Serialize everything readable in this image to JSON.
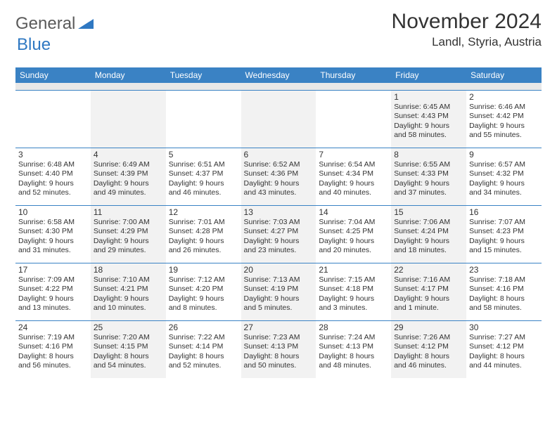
{
  "brand": {
    "part1": "General",
    "part2": "Blue",
    "color1": "#5a5a5a",
    "color2": "#2f78c2"
  },
  "title": "November 2024",
  "location": "Landl, Styria, Austria",
  "colors": {
    "header_bg": "#3a82c4",
    "header_text": "#ffffff",
    "row_border": "#3a82c4",
    "alt_bg": "#f2f2f2",
    "spacer_bg": "#e8e8e8",
    "text": "#333333"
  },
  "fonts": {
    "title_size": 30,
    "location_size": 17,
    "dayhead_size": 12,
    "daynum_size": 12,
    "info_size": 10.5
  },
  "dayHeaders": [
    "Sunday",
    "Monday",
    "Tuesday",
    "Wednesday",
    "Thursday",
    "Friday",
    "Saturday"
  ],
  "weeks": [
    [
      null,
      null,
      null,
      null,
      null,
      {
        "n": "1",
        "sr": "Sunrise: 6:45 AM",
        "ss": "Sunset: 4:43 PM",
        "d1": "Daylight: 9 hours",
        "d2": "and 58 minutes."
      },
      {
        "n": "2",
        "sr": "Sunrise: 6:46 AM",
        "ss": "Sunset: 4:42 PM",
        "d1": "Daylight: 9 hours",
        "d2": "and 55 minutes."
      }
    ],
    [
      {
        "n": "3",
        "sr": "Sunrise: 6:48 AM",
        "ss": "Sunset: 4:40 PM",
        "d1": "Daylight: 9 hours",
        "d2": "and 52 minutes."
      },
      {
        "n": "4",
        "sr": "Sunrise: 6:49 AM",
        "ss": "Sunset: 4:39 PM",
        "d1": "Daylight: 9 hours",
        "d2": "and 49 minutes."
      },
      {
        "n": "5",
        "sr": "Sunrise: 6:51 AM",
        "ss": "Sunset: 4:37 PM",
        "d1": "Daylight: 9 hours",
        "d2": "and 46 minutes."
      },
      {
        "n": "6",
        "sr": "Sunrise: 6:52 AM",
        "ss": "Sunset: 4:36 PM",
        "d1": "Daylight: 9 hours",
        "d2": "and 43 minutes."
      },
      {
        "n": "7",
        "sr": "Sunrise: 6:54 AM",
        "ss": "Sunset: 4:34 PM",
        "d1": "Daylight: 9 hours",
        "d2": "and 40 minutes."
      },
      {
        "n": "8",
        "sr": "Sunrise: 6:55 AM",
        "ss": "Sunset: 4:33 PM",
        "d1": "Daylight: 9 hours",
        "d2": "and 37 minutes."
      },
      {
        "n": "9",
        "sr": "Sunrise: 6:57 AM",
        "ss": "Sunset: 4:32 PM",
        "d1": "Daylight: 9 hours",
        "d2": "and 34 minutes."
      }
    ],
    [
      {
        "n": "10",
        "sr": "Sunrise: 6:58 AM",
        "ss": "Sunset: 4:30 PM",
        "d1": "Daylight: 9 hours",
        "d2": "and 31 minutes."
      },
      {
        "n": "11",
        "sr": "Sunrise: 7:00 AM",
        "ss": "Sunset: 4:29 PM",
        "d1": "Daylight: 9 hours",
        "d2": "and 29 minutes."
      },
      {
        "n": "12",
        "sr": "Sunrise: 7:01 AM",
        "ss": "Sunset: 4:28 PM",
        "d1": "Daylight: 9 hours",
        "d2": "and 26 minutes."
      },
      {
        "n": "13",
        "sr": "Sunrise: 7:03 AM",
        "ss": "Sunset: 4:27 PM",
        "d1": "Daylight: 9 hours",
        "d2": "and 23 minutes."
      },
      {
        "n": "14",
        "sr": "Sunrise: 7:04 AM",
        "ss": "Sunset: 4:25 PM",
        "d1": "Daylight: 9 hours",
        "d2": "and 20 minutes."
      },
      {
        "n": "15",
        "sr": "Sunrise: 7:06 AM",
        "ss": "Sunset: 4:24 PM",
        "d1": "Daylight: 9 hours",
        "d2": "and 18 minutes."
      },
      {
        "n": "16",
        "sr": "Sunrise: 7:07 AM",
        "ss": "Sunset: 4:23 PM",
        "d1": "Daylight: 9 hours",
        "d2": "and 15 minutes."
      }
    ],
    [
      {
        "n": "17",
        "sr": "Sunrise: 7:09 AM",
        "ss": "Sunset: 4:22 PM",
        "d1": "Daylight: 9 hours",
        "d2": "and 13 minutes."
      },
      {
        "n": "18",
        "sr": "Sunrise: 7:10 AM",
        "ss": "Sunset: 4:21 PM",
        "d1": "Daylight: 9 hours",
        "d2": "and 10 minutes."
      },
      {
        "n": "19",
        "sr": "Sunrise: 7:12 AM",
        "ss": "Sunset: 4:20 PM",
        "d1": "Daylight: 9 hours",
        "d2": "and 8 minutes."
      },
      {
        "n": "20",
        "sr": "Sunrise: 7:13 AM",
        "ss": "Sunset: 4:19 PM",
        "d1": "Daylight: 9 hours",
        "d2": "and 5 minutes."
      },
      {
        "n": "21",
        "sr": "Sunrise: 7:15 AM",
        "ss": "Sunset: 4:18 PM",
        "d1": "Daylight: 9 hours",
        "d2": "and 3 minutes."
      },
      {
        "n": "22",
        "sr": "Sunrise: 7:16 AM",
        "ss": "Sunset: 4:17 PM",
        "d1": "Daylight: 9 hours",
        "d2": "and 1 minute."
      },
      {
        "n": "23",
        "sr": "Sunrise: 7:18 AM",
        "ss": "Sunset: 4:16 PM",
        "d1": "Daylight: 8 hours",
        "d2": "and 58 minutes."
      }
    ],
    [
      {
        "n": "24",
        "sr": "Sunrise: 7:19 AM",
        "ss": "Sunset: 4:16 PM",
        "d1": "Daylight: 8 hours",
        "d2": "and 56 minutes."
      },
      {
        "n": "25",
        "sr": "Sunrise: 7:20 AM",
        "ss": "Sunset: 4:15 PM",
        "d1": "Daylight: 8 hours",
        "d2": "and 54 minutes."
      },
      {
        "n": "26",
        "sr": "Sunrise: 7:22 AM",
        "ss": "Sunset: 4:14 PM",
        "d1": "Daylight: 8 hours",
        "d2": "and 52 minutes."
      },
      {
        "n": "27",
        "sr": "Sunrise: 7:23 AM",
        "ss": "Sunset: 4:13 PM",
        "d1": "Daylight: 8 hours",
        "d2": "and 50 minutes."
      },
      {
        "n": "28",
        "sr": "Sunrise: 7:24 AM",
        "ss": "Sunset: 4:13 PM",
        "d1": "Daylight: 8 hours",
        "d2": "and 48 minutes."
      },
      {
        "n": "29",
        "sr": "Sunrise: 7:26 AM",
        "ss": "Sunset: 4:12 PM",
        "d1": "Daylight: 8 hours",
        "d2": "and 46 minutes."
      },
      {
        "n": "30",
        "sr": "Sunrise: 7:27 AM",
        "ss": "Sunset: 4:12 PM",
        "d1": "Daylight: 8 hours",
        "d2": "and 44 minutes."
      }
    ]
  ]
}
